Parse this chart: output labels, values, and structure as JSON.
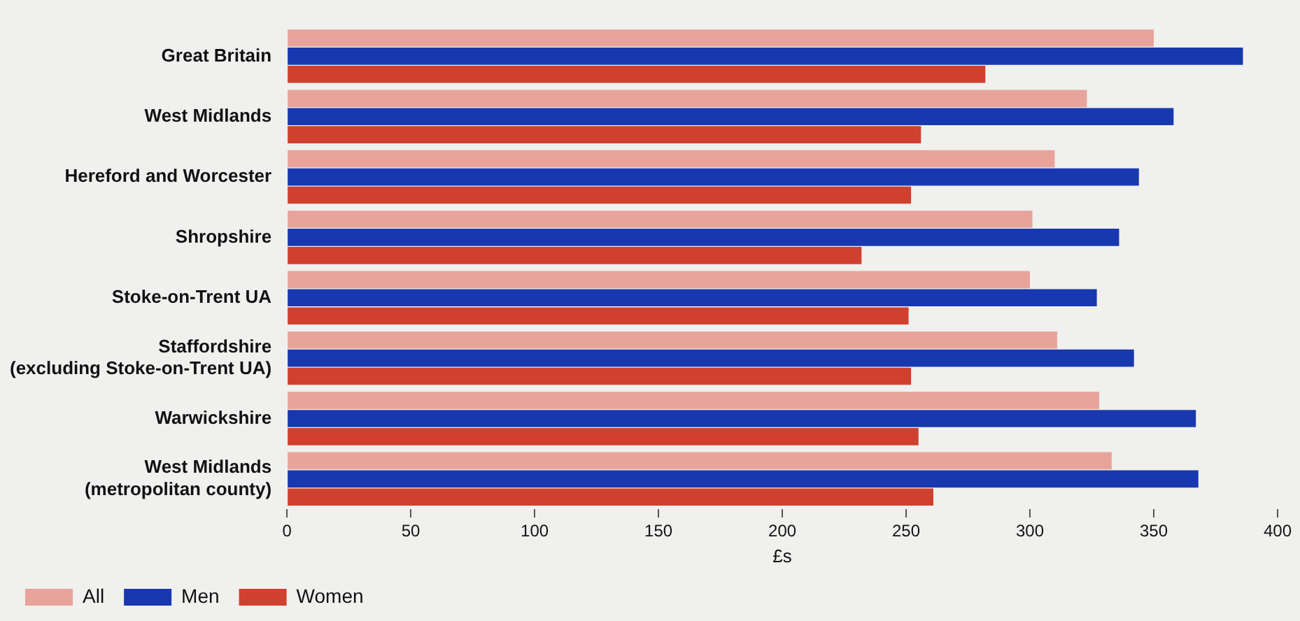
{
  "chart_data": {
    "type": "bar",
    "orientation": "horizontal",
    "xlabel": "£s",
    "categories": [
      "Great Britain",
      "West Midlands",
      "Hereford and Worcester",
      "Shropshire",
      "Stoke-on-Trent UA",
      "Staffordshire\n(excluding Stoke-on-Trent UA)",
      "Warwickshire",
      "West Midlands\n(metropolitan county)"
    ],
    "series": [
      {
        "name": "All",
        "color": "#e8a49a",
        "values": [
          350,
          323,
          310,
          301,
          300,
          311,
          328,
          333
        ]
      },
      {
        "name": "Men",
        "color": "#1838b0",
        "values": [
          386,
          358,
          344,
          336,
          327,
          342,
          367,
          368
        ]
      },
      {
        "name": "Women",
        "color": "#d0402f",
        "values": [
          282,
          256,
          252,
          232,
          251,
          252,
          255,
          261
        ]
      }
    ],
    "xlim": [
      0,
      400
    ],
    "xticks": [
      0,
      50,
      100,
      150,
      200,
      250,
      300,
      350,
      400
    ],
    "legend": "bottom"
  }
}
